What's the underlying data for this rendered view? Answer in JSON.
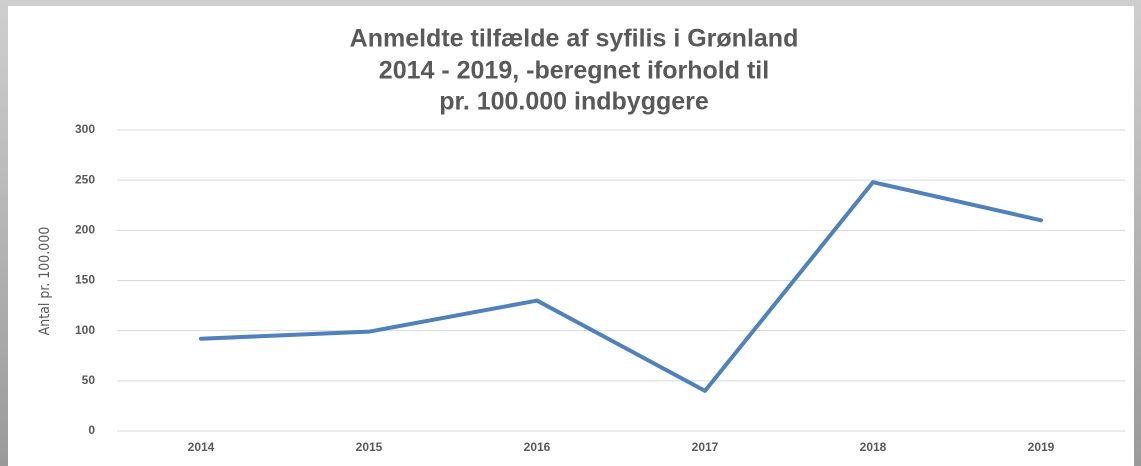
{
  "chart_data": {
    "type": "line",
    "title": [
      "Anmeldte tilfælde af syfilis i Grønland",
      "2014 - 2019, -beregnet iforhold til",
      "pr. 100.000 indbyggere"
    ],
    "y_label": "Antal pr. 100.000",
    "categories": [
      "2014",
      "2015",
      "2016",
      "2017",
      "2018",
      "2019"
    ],
    "series": [
      {
        "name": "Anmeldte tilfælde",
        "color": "#4f81bd",
        "values": [
          92,
          99,
          130,
          40,
          248,
          210
        ]
      }
    ],
    "ylim": [
      0,
      300
    ],
    "yticks": [
      0,
      50,
      100,
      150,
      200,
      250,
      300
    ],
    "grid": true
  }
}
